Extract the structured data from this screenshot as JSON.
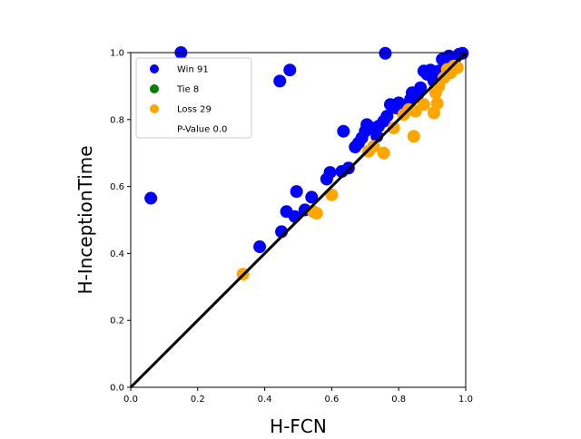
{
  "chart_data": {
    "type": "scatter",
    "title": "",
    "xlabel": "H-FCN",
    "ylabel": "H-InceptionTime",
    "xlim": [
      0,
      1
    ],
    "ylim": [
      0,
      1
    ],
    "x_ticks": [
      "0.0",
      "0.2",
      "0.4",
      "0.6",
      "0.8",
      "1.0"
    ],
    "y_ticks": [
      "0.0",
      "0.2",
      "0.4",
      "0.6",
      "0.8",
      "1.0"
    ],
    "grid": false,
    "legend_position": "top-left",
    "reference_line": {
      "from": [
        0,
        0
      ],
      "to": [
        1,
        1
      ],
      "color": "#000000"
    },
    "legend": [
      {
        "label": "Win 91",
        "color": "#0000ff",
        "marker": "dot"
      },
      {
        "label": "Tie 8",
        "color": "#008000",
        "marker": "dot"
      },
      {
        "label": "Loss 29",
        "color": "#ffa500",
        "marker": "dot"
      },
      {
        "label": "P-Value 0.0",
        "color": "",
        "marker": "none"
      }
    ],
    "series": [
      {
        "name": "Win 91",
        "color": "#0000ff",
        "points": [
          [
            0.06,
            0.565
          ],
          [
            0.15,
            1.0
          ],
          [
            0.445,
            0.915
          ],
          [
            0.475,
            0.948
          ],
          [
            0.76,
            0.998
          ],
          [
            0.385,
            0.42
          ],
          [
            0.45,
            0.465
          ],
          [
            0.465,
            0.525
          ],
          [
            0.49,
            0.51
          ],
          [
            0.495,
            0.585
          ],
          [
            0.52,
            0.53
          ],
          [
            0.54,
            0.568
          ],
          [
            0.585,
            0.622
          ],
          [
            0.595,
            0.642
          ],
          [
            0.63,
            0.645
          ],
          [
            0.635,
            0.765
          ],
          [
            0.65,
            0.655
          ],
          [
            0.67,
            0.718
          ],
          [
            0.68,
            0.73
          ],
          [
            0.69,
            0.745
          ],
          [
            0.7,
            0.765
          ],
          [
            0.705,
            0.785
          ],
          [
            0.72,
            0.775
          ],
          [
            0.735,
            0.75
          ],
          [
            0.74,
            0.78
          ],
          [
            0.755,
            0.795
          ],
          [
            0.765,
            0.81
          ],
          [
            0.775,
            0.845
          ],
          [
            0.79,
            0.835
          ],
          [
            0.8,
            0.85
          ],
          [
            0.81,
            0.825
          ],
          [
            0.82,
            0.84
          ],
          [
            0.835,
            0.86
          ],
          [
            0.84,
            0.88
          ],
          [
            0.855,
            0.87
          ],
          [
            0.865,
            0.895
          ],
          [
            0.875,
            0.945
          ],
          [
            0.885,
            0.935
          ],
          [
            0.895,
            0.948
          ],
          [
            0.905,
            0.915
          ],
          [
            0.91,
            0.93
          ],
          [
            0.92,
            0.945
          ],
          [
            0.93,
            0.98
          ],
          [
            0.94,
            0.965
          ],
          [
            0.95,
            0.99
          ],
          [
            0.96,
            0.975
          ],
          [
            0.97,
            0.985
          ],
          [
            0.98,
            0.995
          ],
          [
            0.99,
            0.998
          ]
        ]
      },
      {
        "name": "Tie 8",
        "color": "#008000",
        "points": []
      },
      {
        "name": "Loss 29",
        "color": "#ffa500",
        "points": [
          [
            0.335,
            0.338
          ],
          [
            0.545,
            0.525
          ],
          [
            0.555,
            0.52
          ],
          [
            0.6,
            0.575
          ],
          [
            0.71,
            0.705
          ],
          [
            0.725,
            0.72
          ],
          [
            0.755,
            0.7
          ],
          [
            0.785,
            0.775
          ],
          [
            0.815,
            0.815
          ],
          [
            0.83,
            0.83
          ],
          [
            0.845,
            0.75
          ],
          [
            0.85,
            0.825
          ],
          [
            0.875,
            0.845
          ],
          [
            0.905,
            0.82
          ],
          [
            0.91,
            0.88
          ],
          [
            0.915,
            0.848
          ],
          [
            0.92,
            0.9
          ],
          [
            0.935,
            0.925
          ],
          [
            0.945,
            0.95
          ],
          [
            0.955,
            0.94
          ],
          [
            0.965,
            0.96
          ],
          [
            0.975,
            0.955
          ]
        ]
      }
    ]
  }
}
